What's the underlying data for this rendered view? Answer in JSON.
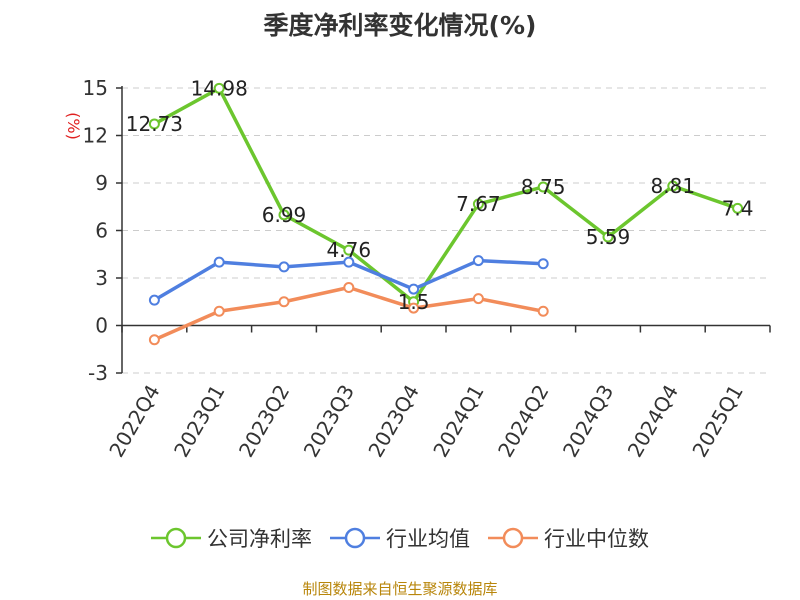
{
  "chart_data": {
    "type": "line",
    "title": "季度净利率变化情况(%)",
    "ylabel": "(%)",
    "xlabel": "",
    "categories": [
      "2022Q4",
      "2023Q1",
      "2023Q2",
      "2023Q3",
      "2023Q4",
      "2024Q1",
      "2024Q2",
      "2024Q3",
      "2024Q4",
      "2025Q1"
    ],
    "ylim": [
      -3,
      15
    ],
    "yticks": [
      "15",
      "12",
      "9",
      "6",
      "3",
      "0",
      "-3"
    ],
    "grid": true,
    "legend_position": "bottom",
    "series": [
      {
        "name": "公司净利率",
        "color": "#6cc62e",
        "values": [
          12.73,
          14.98,
          6.99,
          4.76,
          1.5,
          7.67,
          8.75,
          5.59,
          8.81,
          7.4
        ],
        "labels": [
          "12.73",
          "14.98",
          "6.99",
          "4.76",
          "1.5",
          "7.67",
          "8.75",
          "5.59",
          "8.81",
          "7.4"
        ]
      },
      {
        "name": "行业均值",
        "color": "#4f7fe0",
        "values": [
          1.6,
          4.0,
          3.7,
          4.0,
          2.3,
          4.1,
          3.9,
          null,
          null,
          null
        ]
      },
      {
        "name": "行业中位数",
        "color": "#f28c5a",
        "values": [
          -0.9,
          0.9,
          1.5,
          2.4,
          1.1,
          1.7,
          0.9,
          null,
          null,
          null
        ]
      }
    ],
    "source": "制图数据来自恒生聚源数据库"
  }
}
